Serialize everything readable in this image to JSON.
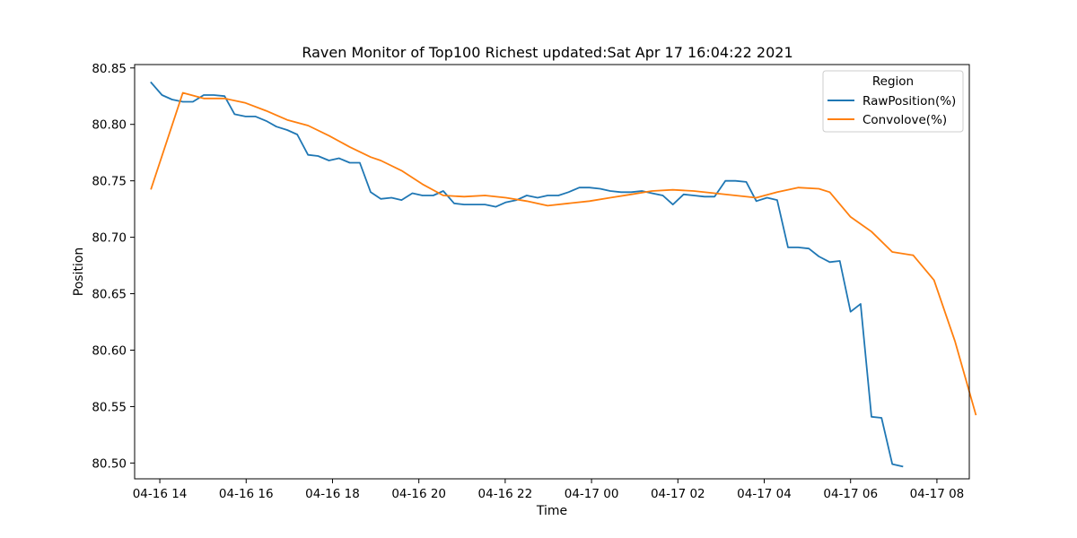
{
  "chart_data": {
    "type": "line",
    "title": "Raven Monitor of Top100 Richest  updated:Sat Apr 17 16:04:22 2021",
    "xlabel": "Time",
    "ylabel": "Position",
    "xlim": [
      "2021-04-16 13:25",
      "2021-04-17 08:45"
    ],
    "ylim": [
      80.486,
      80.853
    ],
    "grid": false,
    "legend": {
      "title": "Region",
      "placement": "top-right"
    },
    "x_ticks": [
      {
        "t": "2021-04-16 14:00",
        "label": "04-16 14"
      },
      {
        "t": "2021-04-16 16:00",
        "label": "04-16 16"
      },
      {
        "t": "2021-04-16 18:00",
        "label": "04-16 18"
      },
      {
        "t": "2021-04-16 20:00",
        "label": "04-16 20"
      },
      {
        "t": "2021-04-16 22:00",
        "label": "04-16 22"
      },
      {
        "t": "2021-04-17 00:00",
        "label": "04-17 00"
      },
      {
        "t": "2021-04-17 02:00",
        "label": "04-17 02"
      },
      {
        "t": "2021-04-17 04:00",
        "label": "04-17 04"
      },
      {
        "t": "2021-04-17 06:00",
        "label": "04-17 06"
      },
      {
        "t": "2021-04-17 08:00",
        "label": "04-17 08"
      }
    ],
    "y_ticks": [
      {
        "v": 80.5,
        "label": "80.50"
      },
      {
        "v": 80.55,
        "label": "80.55"
      },
      {
        "v": 80.6,
        "label": "80.60"
      },
      {
        "v": 80.65,
        "label": "80.65"
      },
      {
        "v": 80.7,
        "label": "80.70"
      },
      {
        "v": 80.75,
        "label": "80.75"
      },
      {
        "v": 80.8,
        "label": "80.80"
      },
      {
        "v": 80.85,
        "label": "80.85"
      }
    ],
    "series": [
      {
        "name": "RawPosition(%)",
        "color": "#1f77b4",
        "points": [
          [
            "2021-04-16 13:48",
            80.837
          ],
          [
            "2021-04-16 14:03",
            80.826
          ],
          [
            "2021-04-16 14:17",
            80.822
          ],
          [
            "2021-04-16 14:32",
            80.82
          ],
          [
            "2021-04-16 14:46",
            80.82
          ],
          [
            "2021-04-16 15:01",
            80.826
          ],
          [
            "2021-04-16 15:15",
            80.826
          ],
          [
            "2021-04-16 15:30",
            80.825
          ],
          [
            "2021-04-16 15:44",
            80.809
          ],
          [
            "2021-04-16 15:59",
            80.807
          ],
          [
            "2021-04-16 16:13",
            80.807
          ],
          [
            "2021-04-16 16:28",
            80.803
          ],
          [
            "2021-04-16 16:42",
            80.798
          ],
          [
            "2021-04-16 16:57",
            80.795
          ],
          [
            "2021-04-16 17:11",
            80.791
          ],
          [
            "2021-04-16 17:26",
            80.773
          ],
          [
            "2021-04-16 17:40",
            80.772
          ],
          [
            "2021-04-16 17:55",
            80.768
          ],
          [
            "2021-04-16 18:09",
            80.77
          ],
          [
            "2021-04-16 18:24",
            80.766
          ],
          [
            "2021-04-16 18:38",
            80.766
          ],
          [
            "2021-04-16 18:53",
            80.74
          ],
          [
            "2021-04-16 19:07",
            80.734
          ],
          [
            "2021-04-16 19:22",
            80.735
          ],
          [
            "2021-04-16 19:36",
            80.733
          ],
          [
            "2021-04-16 19:51",
            80.739
          ],
          [
            "2021-04-16 20:05",
            80.737
          ],
          [
            "2021-04-16 20:20",
            80.737
          ],
          [
            "2021-04-16 20:34",
            80.741
          ],
          [
            "2021-04-16 20:49",
            80.73
          ],
          [
            "2021-04-16 21:03",
            80.729
          ],
          [
            "2021-04-16 21:18",
            80.729
          ],
          [
            "2021-04-16 21:32",
            80.729
          ],
          [
            "2021-04-16 21:47",
            80.727
          ],
          [
            "2021-04-16 22:01",
            80.731
          ],
          [
            "2021-04-16 22:16",
            80.733
          ],
          [
            "2021-04-16 22:30",
            80.737
          ],
          [
            "2021-04-16 22:45",
            80.735
          ],
          [
            "2021-04-16 22:59",
            80.737
          ],
          [
            "2021-04-16 23:14",
            80.737
          ],
          [
            "2021-04-16 23:28",
            80.74
          ],
          [
            "2021-04-16 23:43",
            80.744
          ],
          [
            "2021-04-16 23:57",
            80.744
          ],
          [
            "2021-04-17 00:12",
            80.743
          ],
          [
            "2021-04-17 00:26",
            80.741
          ],
          [
            "2021-04-17 00:41",
            80.74
          ],
          [
            "2021-04-17 00:55",
            80.74
          ],
          [
            "2021-04-17 01:10",
            80.741
          ],
          [
            "2021-04-17 01:24",
            80.739
          ],
          [
            "2021-04-17 01:39",
            80.737
          ],
          [
            "2021-04-17 01:53",
            80.729
          ],
          [
            "2021-04-17 02:08",
            80.738
          ],
          [
            "2021-04-17 02:22",
            80.737
          ],
          [
            "2021-04-17 02:37",
            80.736
          ],
          [
            "2021-04-17 02:51",
            80.736
          ],
          [
            "2021-04-17 03:06",
            80.75
          ],
          [
            "2021-04-17 03:20",
            80.75
          ],
          [
            "2021-04-17 03:35",
            80.749
          ],
          [
            "2021-04-17 03:49",
            80.732
          ],
          [
            "2021-04-17 04:04",
            80.735
          ],
          [
            "2021-04-17 04:18",
            80.733
          ],
          [
            "2021-04-17 04:33",
            80.691
          ],
          [
            "2021-04-17 04:47",
            80.691
          ],
          [
            "2021-04-17 05:02",
            80.69
          ],
          [
            "2021-04-17 05:16",
            80.683
          ],
          [
            "2021-04-17 05:31",
            80.678
          ],
          [
            "2021-04-17 05:45",
            80.679
          ],
          [
            "2021-04-17 06:00",
            80.634
          ],
          [
            "2021-04-17 06:14",
            80.641
          ],
          [
            "2021-04-17 06:29",
            80.541
          ],
          [
            "2021-04-17 06:43",
            80.54
          ],
          [
            "2021-04-17 06:58",
            80.499
          ],
          [
            "2021-04-17 07:12",
            80.497
          ]
        ]
      },
      {
        "name": "Convolove(%)",
        "color": "#ff7f0e",
        "points": [
          [
            "2021-04-16 13:48",
            80.743
          ],
          [
            "2021-04-16 14:32",
            80.828
          ],
          [
            "2021-04-16 15:01",
            80.823
          ],
          [
            "2021-04-16 15:30",
            80.823
          ],
          [
            "2021-04-16 15:59",
            80.819
          ],
          [
            "2021-04-16 16:28",
            80.812
          ],
          [
            "2021-04-16 16:57",
            80.804
          ],
          [
            "2021-04-16 17:26",
            80.799
          ],
          [
            "2021-04-16 17:55",
            80.79
          ],
          [
            "2021-04-16 18:24",
            80.78
          ],
          [
            "2021-04-16 18:53",
            80.771
          ],
          [
            "2021-04-16 19:07",
            80.768
          ],
          [
            "2021-04-16 19:36",
            80.759
          ],
          [
            "2021-04-16 20:05",
            80.747
          ],
          [
            "2021-04-16 20:34",
            80.737
          ],
          [
            "2021-04-16 21:03",
            80.736
          ],
          [
            "2021-04-16 21:32",
            80.737
          ],
          [
            "2021-04-16 22:01",
            80.735
          ],
          [
            "2021-04-16 22:30",
            80.732
          ],
          [
            "2021-04-16 22:59",
            80.728
          ],
          [
            "2021-04-16 23:28",
            80.73
          ],
          [
            "2021-04-16 23:57",
            80.732
          ],
          [
            "2021-04-17 00:26",
            80.735
          ],
          [
            "2021-04-17 00:55",
            80.738
          ],
          [
            "2021-04-17 01:24",
            80.741
          ],
          [
            "2021-04-17 01:53",
            80.742
          ],
          [
            "2021-04-17 02:22",
            80.741
          ],
          [
            "2021-04-17 02:51",
            80.739
          ],
          [
            "2021-04-17 03:20",
            80.737
          ],
          [
            "2021-04-17 03:49",
            80.735
          ],
          [
            "2021-04-17 04:18",
            80.74
          ],
          [
            "2021-04-17 04:47",
            80.744
          ],
          [
            "2021-04-17 05:16",
            80.743
          ],
          [
            "2021-04-17 05:31",
            80.74
          ],
          [
            "2021-04-17 06:00",
            80.718
          ],
          [
            "2021-04-17 06:29",
            80.705
          ],
          [
            "2021-04-17 06:58",
            80.687
          ],
          [
            "2021-04-17 07:27",
            80.684
          ],
          [
            "2021-04-17 07:56",
            80.662
          ],
          [
            "2021-04-17 08:25",
            80.608
          ],
          [
            "2021-04-17 08:54",
            80.543
          ]
        ]
      }
    ]
  }
}
